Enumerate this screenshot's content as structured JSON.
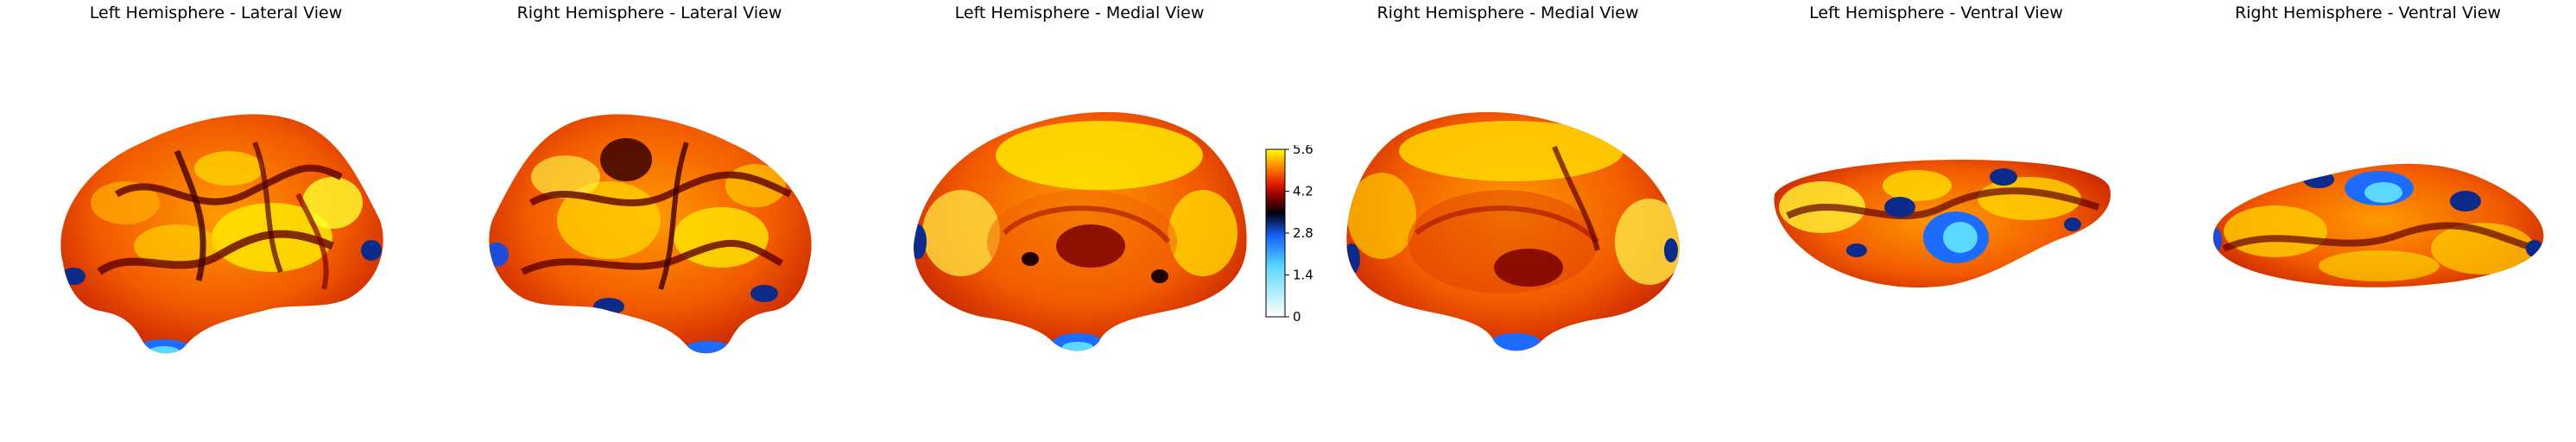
{
  "panels": [
    {
      "title": "Left Hemisphere - Lateral View",
      "view": "lateral",
      "hemisphere": "left"
    },
    {
      "title": "Right Hemisphere - Lateral View",
      "view": "lateral",
      "hemisphere": "right"
    },
    {
      "title": "Left Hemisphere - Medial View",
      "view": "medial",
      "hemisphere": "left"
    },
    {
      "title": "Right Hemisphere - Medial View",
      "view": "medial",
      "hemisphere": "right"
    },
    {
      "title": "Left Hemisphere - Ventral View",
      "view": "ventral",
      "hemisphere": "left"
    },
    {
      "title": "Right Hemisphere - Ventral View",
      "view": "ventral",
      "hemisphere": "right"
    }
  ],
  "colorbar": {
    "ticks": [
      "5.6",
      "4.2",
      "2.8",
      "1.4",
      "0"
    ],
    "min": 0,
    "max": 5.6,
    "colormap": [
      "#ffffff",
      "#5ad8ff",
      "#1565ff",
      "#000010",
      "#8b0000",
      "#e62000",
      "#ff8c00",
      "#ffff00"
    ]
  }
}
